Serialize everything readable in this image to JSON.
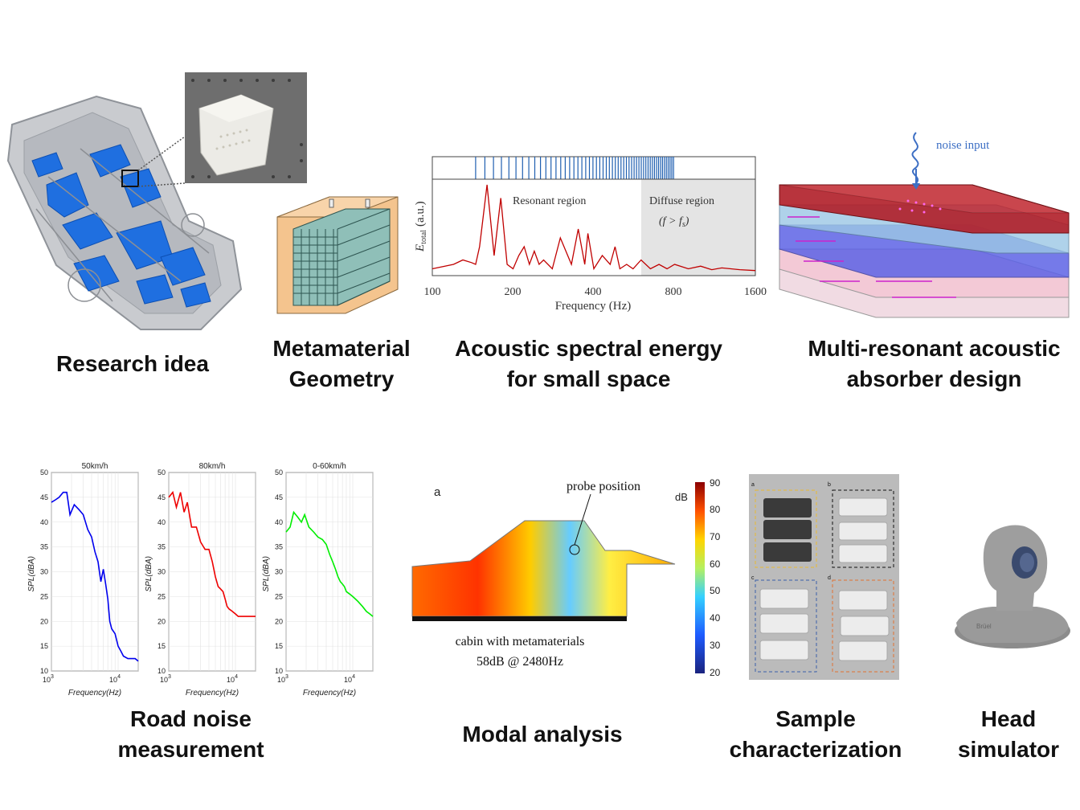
{
  "captions": {
    "research_idea": "Research idea",
    "geometry_1": "Metamaterial",
    "geometry_2": "Geometry",
    "spectral_1": "Acoustic spectral energy",
    "spectral_2": "for small space",
    "absorber_1": "Multi-resonant acoustic",
    "absorber_2": "absorber design",
    "road_1": "Road noise",
    "road_2": "measurement",
    "modal": "Modal analysis",
    "sample_1": "Sample",
    "sample_2": "characterization",
    "head_1": "Head",
    "head_2": "simulator"
  },
  "spectral_panel": {
    "ylabel_main": "E",
    "ylabel_sub": "total",
    "ylabel_unit": "(a.u.)",
    "resonant_label": "Resonant region",
    "diffuse_label": "Diffuse region",
    "diffuse_condition": "(f > f",
    "diffuse_condition_sub": "s",
    "diffuse_condition_end": ")",
    "xlabel": "Frequency (Hz)",
    "xticks": [
      "100",
      "200",
      "400",
      "800",
      "1600"
    ]
  },
  "absorber_panel": {
    "noise_label": "noise input"
  },
  "road_panel": {
    "chart_titles": [
      "50km/h",
      "80km/h",
      "0-60km/h"
    ],
    "ylabel": "SPL(dBA)",
    "xlabel": "Frequency(Hz)",
    "yticks": [
      "50",
      "45",
      "40",
      "35",
      "30",
      "25",
      "20",
      "15",
      "10"
    ],
    "xtick_base": "10",
    "xtick_exps": [
      "3",
      "4"
    ]
  },
  "modal_panel": {
    "label_a": "a",
    "probe_label": "probe position",
    "unit": "dB",
    "colorbar_ticks": [
      "90",
      "80",
      "70",
      "60",
      "50",
      "40",
      "30",
      "20"
    ],
    "caption_line1": "cabin with metamaterials",
    "caption_line2": "58dB @ 2480Hz"
  },
  "sample_panel": {
    "labels": [
      "a",
      "b",
      "c",
      "d"
    ]
  },
  "head_panel": {
    "logo": "Brüel"
  },
  "colors": {
    "car_blue": "#1f6fe0",
    "line_blue": "#0000ee",
    "line_red": "#ee0000",
    "line_green": "#00ee00",
    "spectrum_red": "#c00000",
    "absorber_red": "#c0262f"
  },
  "chart_data": [
    {
      "type": "line",
      "title": "50km/h",
      "xlabel": "Frequency(Hz)",
      "ylabel": "SPL(dBA)",
      "xscale": "log",
      "xlim": [
        1000,
        20000
      ],
      "ylim": [
        10,
        50
      ],
      "grid": true,
      "series": [
        {
          "x": [
            1000,
            1150,
            1300,
            1500,
            1700,
            1900,
            2200,
            2600,
            3000,
            3500,
            4000,
            4500,
            5000,
            5500,
            6000,
            6500,
            7000,
            7500,
            8000,
            9000,
            10000,
            11000,
            12000,
            14000,
            16000,
            18000,
            20000
          ],
          "y": [
            44,
            44.5,
            45,
            46,
            46,
            41.5,
            43.5,
            42.5,
            41.5,
            38.5,
            37,
            34,
            32,
            28,
            30.5,
            27.5,
            24.5,
            20,
            18.5,
            17.5,
            15,
            14,
            13,
            12.5,
            12.5,
            12.5,
            12
          ]
        }
      ]
    },
    {
      "type": "line",
      "title": "80km/h",
      "xlabel": "Frequency(Hz)",
      "ylabel": "SPL(dBA)",
      "xscale": "log",
      "xlim": [
        1000,
        20000
      ],
      "ylim": [
        10,
        50
      ],
      "grid": true,
      "series": [
        {
          "x": [
            1000,
            1150,
            1300,
            1500,
            1700,
            1900,
            2200,
            2600,
            3000,
            3500,
            4000,
            4500,
            5000,
            5500,
            6000,
            6500,
            7000,
            7500,
            8000,
            9000,
            10000,
            11000,
            12000,
            14000,
            16000,
            18000,
            20000
          ],
          "y": [
            45,
            46,
            43,
            46,
            42,
            44,
            39,
            39,
            36,
            34.5,
            34.5,
            32,
            29,
            27,
            26.5,
            26,
            24.5,
            23,
            22.5,
            22,
            21.5,
            21,
            21,
            21,
            21,
            21,
            21
          ]
        }
      ]
    },
    {
      "type": "line",
      "title": "0-60km/h",
      "xlabel": "Frequency(Hz)",
      "ylabel": "SPL(dBA)",
      "xscale": "log",
      "xlim": [
        1000,
        20000
      ],
      "ylim": [
        10,
        50
      ],
      "grid": true,
      "series": [
        {
          "x": [
            1000,
            1150,
            1300,
            1500,
            1700,
            1900,
            2200,
            2600,
            3000,
            3500,
            4000,
            4500,
            5000,
            5500,
            6000,
            6500,
            7000,
            7500,
            8000,
            9000,
            10000,
            11000,
            12000,
            14000,
            16000,
            18000,
            20000
          ],
          "y": [
            38,
            39,
            42,
            41,
            40,
            41.5,
            39,
            38,
            37,
            36.5,
            35.5,
            33.5,
            32,
            30.5,
            29,
            28,
            27.5,
            27,
            26,
            25.5,
            25,
            24.5,
            24,
            23,
            22,
            21.5,
            21
          ]
        }
      ]
    },
    {
      "type": "line",
      "ylabel": "E_total (a.u.)",
      "xlabel": "Frequency (Hz)",
      "xscale": "log",
      "xlim": [
        100,
        1600
      ],
      "series": [
        {
          "x": [
            100,
            120,
            130,
            140,
            145,
            150,
            160,
            170,
            180,
            190,
            200,
            210,
            220,
            230,
            240,
            250,
            260,
            280,
            300,
            330,
            350,
            370,
            380,
            400,
            430,
            460,
            480,
            500,
            530,
            560,
            600,
            650,
            700,
            750,
            800,
            900,
            1000,
            1100,
            1200,
            1400,
            1600
          ],
          "y": [
            0.05,
            0.1,
            0.15,
            0.12,
            0.1,
            0.3,
            1.0,
            0.2,
            0.85,
            0.1,
            0.05,
            0.2,
            0.3,
            0.1,
            0.25,
            0.1,
            0.15,
            0.05,
            0.4,
            0.1,
            0.5,
            0.1,
            0.45,
            0.05,
            0.2,
            0.1,
            0.3,
            0.05,
            0.1,
            0.05,
            0.15,
            0.05,
            0.1,
            0.05,
            0.1,
            0.05,
            0.08,
            0.04,
            0.06,
            0.04,
            0.03
          ]
        }
      ]
    }
  ]
}
